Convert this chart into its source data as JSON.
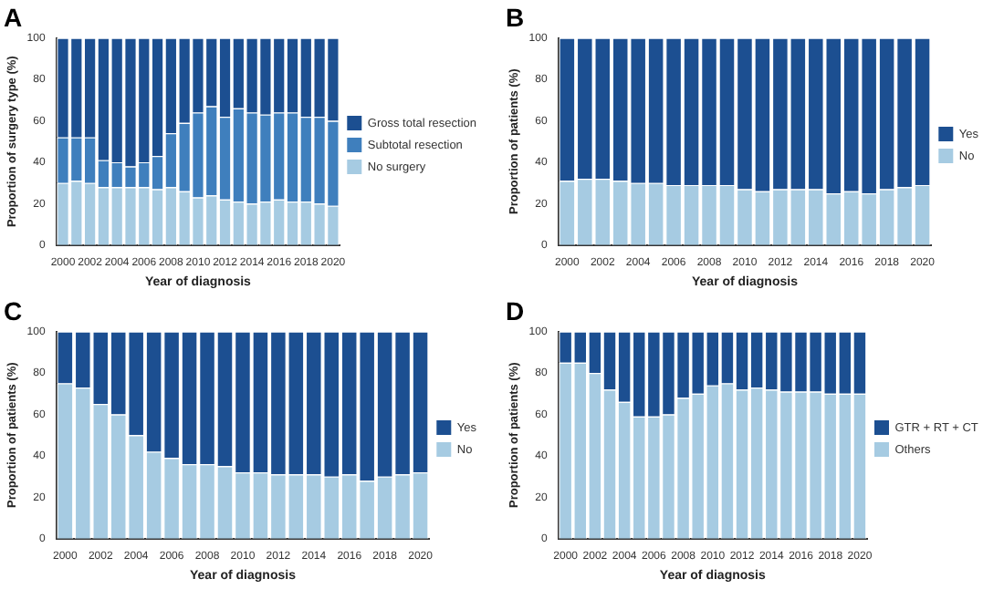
{
  "chart_data": [
    {
      "type": "bar",
      "title": "A",
      "xlabel": "Year of diagnosis",
      "ylabel": "Proportion of surgery type (%)",
      "stacked": true,
      "legend": "right",
      "ylim": [
        0,
        100
      ],
      "yticks": [
        0,
        20,
        40,
        60,
        80,
        100
      ],
      "categories": [
        "2000",
        null,
        "2002",
        null,
        "2004",
        null,
        "2006",
        null,
        "2008",
        null,
        "2010",
        null,
        "2012",
        null,
        "2014",
        null,
        "2016",
        null,
        "2018",
        null,
        "2020"
      ],
      "series": [
        {
          "name": "No surgery",
          "color": "#a6cbe2",
          "values": [
            30,
            31,
            30,
            28,
            28,
            28,
            28,
            27,
            28,
            26,
            23,
            24,
            22,
            21,
            20,
            21,
            22,
            21,
            21,
            20,
            19
          ]
        },
        {
          "name": "Subtotal resection",
          "color": "#3f7fbd",
          "values": [
            22,
            21,
            22,
            13,
            12,
            10,
            12,
            16,
            26,
            33,
            41,
            43,
            40,
            45,
            44,
            42,
            42,
            43,
            41,
            42,
            41
          ]
        },
        {
          "name": "Gross total resection",
          "color": "#1c4f91",
          "values": [
            48,
            48,
            48,
            59,
            60,
            62,
            60,
            57,
            46,
            41,
            36,
            33,
            38,
            34,
            36,
            37,
            36,
            36,
            38,
            38,
            40
          ]
        }
      ]
    },
    {
      "type": "bar",
      "title": "B",
      "xlabel": "Year of diagnosis",
      "ylabel": "Proportion of patients (%)",
      "stacked": true,
      "legend": "right",
      "ylim": [
        0,
        100
      ],
      "yticks": [
        0,
        20,
        40,
        60,
        80,
        100
      ],
      "categories": [
        "2000",
        null,
        "2002",
        null,
        "2004",
        null,
        "2006",
        null,
        "2008",
        null,
        "2010",
        null,
        "2012",
        null,
        "2014",
        null,
        "2016",
        null,
        "2018",
        null,
        "2020"
      ],
      "series": [
        {
          "name": "No",
          "color": "#a6cbe2",
          "values": [
            31,
            32,
            32,
            31,
            30,
            30,
            29,
            29,
            29,
            29,
            27,
            26,
            27,
            27,
            27,
            25,
            26,
            25,
            27,
            28,
            29
          ]
        },
        {
          "name": "Yes",
          "color": "#1c4f91",
          "values": [
            69,
            68,
            68,
            69,
            70,
            70,
            71,
            71,
            71,
            71,
            73,
            74,
            73,
            73,
            73,
            75,
            74,
            75,
            73,
            72,
            71
          ]
        }
      ]
    },
    {
      "type": "bar",
      "title": "C",
      "xlabel": "Year of diagnosis",
      "ylabel": "Proportion of patients (%)",
      "stacked": true,
      "legend": "right",
      "ylim": [
        0,
        100
      ],
      "yticks": [
        0,
        20,
        40,
        60,
        80,
        100
      ],
      "categories": [
        "2000",
        null,
        "2002",
        null,
        "2004",
        null,
        "2006",
        null,
        "2008",
        null,
        "2010",
        null,
        "2012",
        null,
        "2014",
        null,
        "2016",
        null,
        "2018",
        null,
        "2020"
      ],
      "series": [
        {
          "name": "No",
          "color": "#a6cbe2",
          "values": [
            75,
            73,
            65,
            60,
            50,
            42,
            39,
            36,
            36,
            35,
            32,
            32,
            31,
            31,
            31,
            30,
            31,
            28,
            30,
            31,
            32
          ]
        },
        {
          "name": "Yes",
          "color": "#1c4f91",
          "values": [
            25,
            27,
            35,
            40,
            50,
            58,
            61,
            64,
            64,
            65,
            68,
            68,
            69,
            69,
            69,
            70,
            69,
            72,
            70,
            69,
            68
          ]
        }
      ]
    },
    {
      "type": "bar",
      "title": "D",
      "xlabel": "Year of diagnosis",
      "ylabel": "Proportion of patients (%)",
      "stacked": true,
      "legend": "right",
      "ylim": [
        0,
        100
      ],
      "yticks": [
        0,
        20,
        40,
        60,
        80,
        100
      ],
      "categories": [
        "2000",
        null,
        "2002",
        null,
        "2004",
        null,
        "2006",
        null,
        "2008",
        null,
        "2010",
        null,
        "2012",
        null,
        "2014",
        null,
        "2016",
        null,
        "2018",
        null,
        "2020"
      ],
      "series": [
        {
          "name": "Others",
          "color": "#a6cbe2",
          "values": [
            85,
            85,
            80,
            72,
            66,
            59,
            59,
            60,
            68,
            70,
            74,
            75,
            72,
            73,
            72,
            71,
            71,
            71,
            70,
            70,
            70
          ]
        },
        {
          "name": "GTR + RT + CT",
          "color": "#1c4f91",
          "values": [
            15,
            15,
            20,
            28,
            34,
            41,
            41,
            40,
            32,
            30,
            26,
            25,
            28,
            27,
            28,
            29,
            29,
            29,
            30,
            30,
            30
          ]
        }
      ]
    }
  ]
}
